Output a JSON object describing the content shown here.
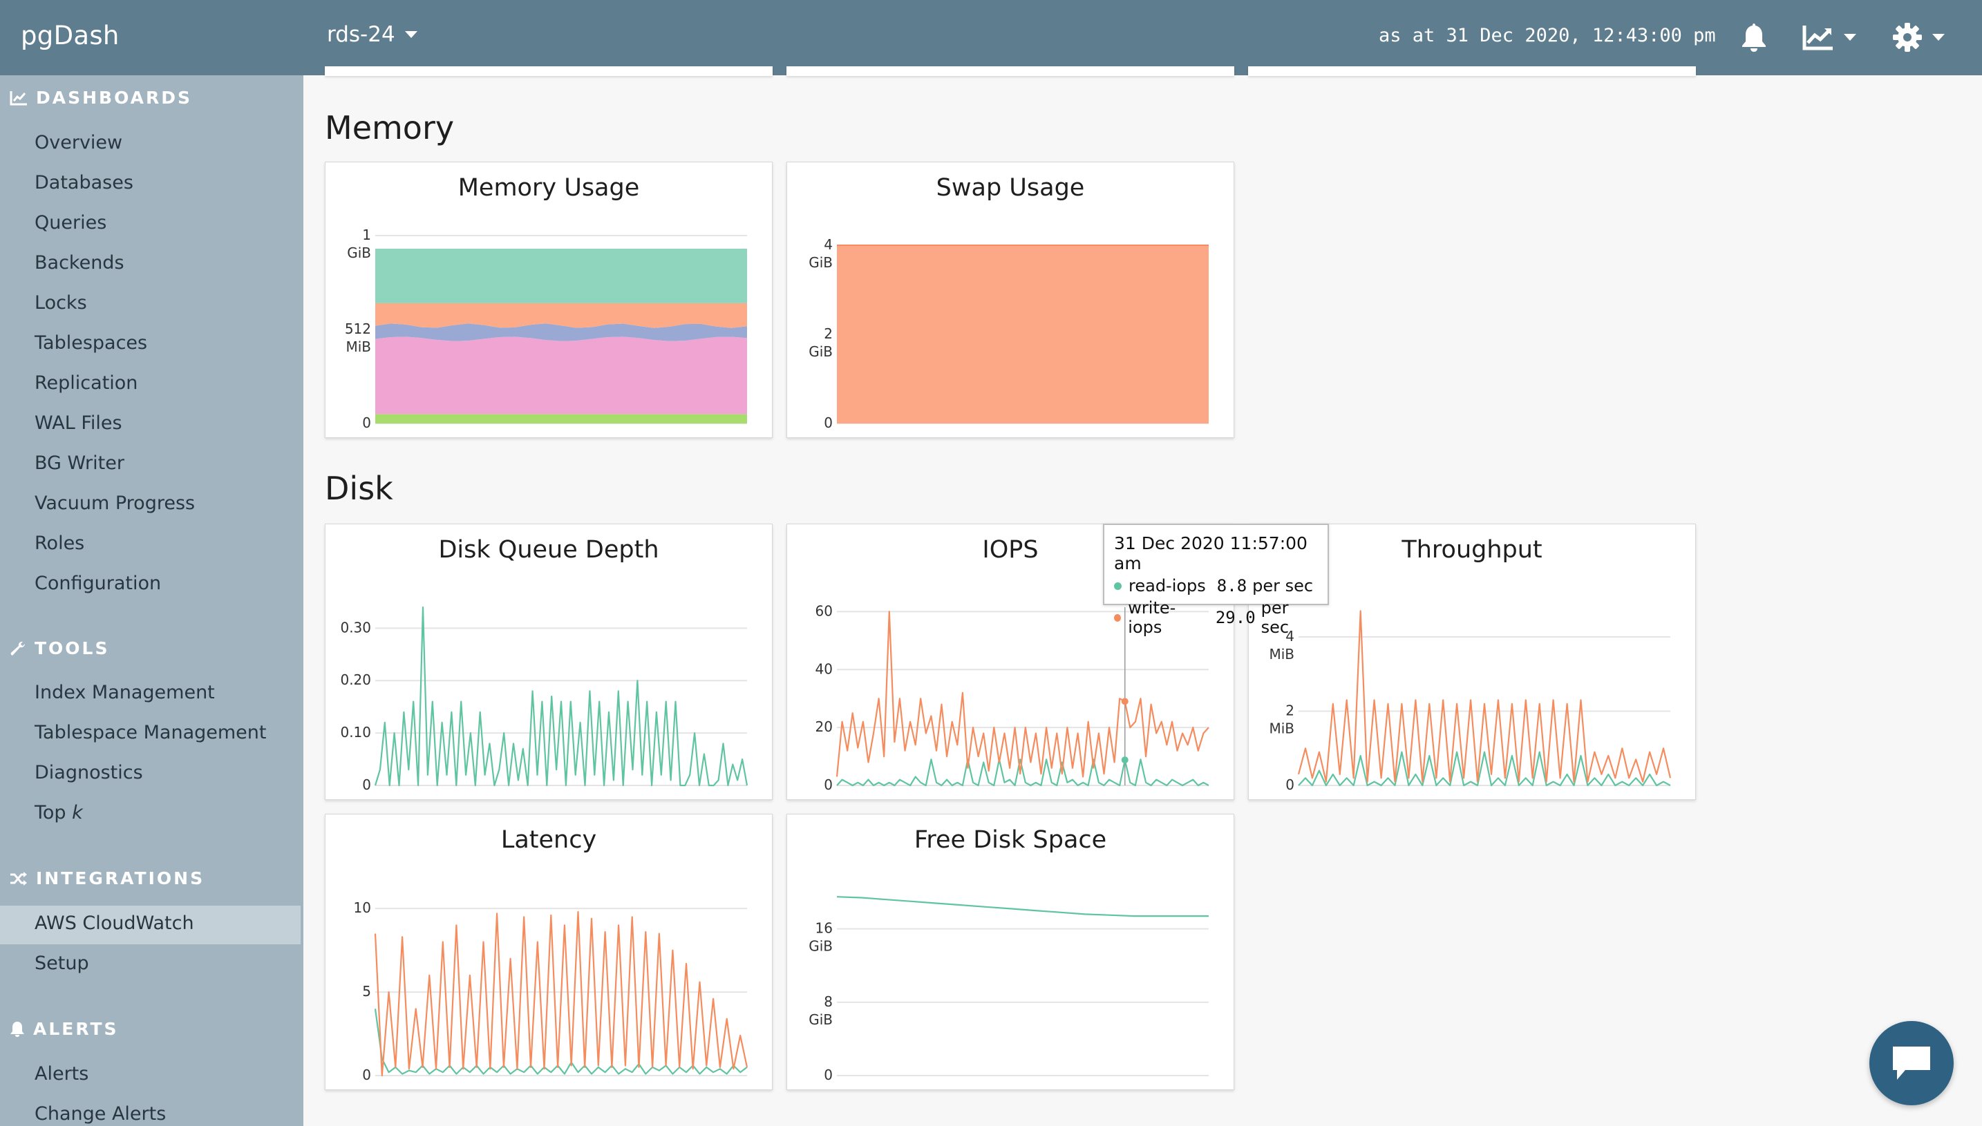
{
  "header": {
    "brand": "pgDash",
    "server": "rds-24",
    "as_at": "as at 31 Dec 2020, 12:43:00 pm",
    "icons": [
      "bell-icon",
      "chart-icon",
      "gear-icon"
    ]
  },
  "sidebar": {
    "dashboards": {
      "heading": "DASHBOARDS",
      "items": [
        "Overview",
        "Databases",
        "Queries",
        "Backends",
        "Locks",
        "Tablespaces",
        "Replication",
        "WAL Files",
        "BG Writer",
        "Vacuum Progress",
        "Roles",
        "Configuration"
      ]
    },
    "tools": {
      "heading": "TOOLS",
      "items": [
        "Index Management",
        "Tablespace Management",
        "Diagnostics"
      ],
      "topk_prefix": "Top ",
      "topk_var": "k"
    },
    "integrations": {
      "heading": "INTEGRATIONS",
      "items": [
        "AWS CloudWatch",
        "Setup"
      ],
      "active": "AWS CloudWatch"
    },
    "alerts": {
      "heading": "ALERTS",
      "items": [
        "Alerts",
        "Change Alerts"
      ]
    }
  },
  "sections": {
    "memory": "Memory",
    "disk": "Disk"
  },
  "colors": {
    "topbar": "#5e7d8f",
    "sidebar": "#a2b4c0",
    "green_series": "#5fc4a0",
    "orange_series": "#f58c5e",
    "swap_fill": "#fca886",
    "mem_teal": "#8fd4bd",
    "mem_orange": "#fcaa88",
    "mem_blue": "#9aa8d4",
    "mem_pink": "#efa4d2",
    "mem_lime": "#a8dc6c"
  },
  "tooltip": {
    "timestamp": "31 Dec 2020 11:57:00 am",
    "rows": [
      {
        "label": "read-iops",
        "value": "8.8",
        "unit": "per sec"
      },
      {
        "label": "write-iops",
        "value": "29.0",
        "unit": "per sec"
      }
    ]
  },
  "chart_data": [
    {
      "id": "memory-usage",
      "type": "area",
      "title": "Memory Usage",
      "y_ticks": [
        [
          "1",
          "GiB"
        ],
        [
          "512",
          "MiB"
        ],
        [
          "0",
          ""
        ]
      ],
      "ylim_gib": [
        0,
        1
      ],
      "stack_bounds_gib": {
        "lime_top": 0.05,
        "pink_top": 0.45,
        "blue_top": 0.52,
        "orange_top": 0.64,
        "teal_top": 0.93
      }
    },
    {
      "id": "swap-usage",
      "type": "area",
      "title": "Swap Usage",
      "y_ticks": [
        [
          "4",
          "GiB"
        ],
        [
          "2",
          "GiB"
        ],
        [
          "0",
          ""
        ]
      ],
      "ylim_gib": [
        0,
        4
      ],
      "value_gib": 4
    },
    {
      "id": "disk-queue-depth",
      "type": "line",
      "title": "Disk Queue Depth",
      "y_ticks": [
        [
          "0.30",
          ""
        ],
        [
          "0.20",
          ""
        ],
        [
          "0.10",
          ""
        ],
        [
          "0",
          ""
        ]
      ],
      "ylim": [
        0,
        0.33
      ],
      "series": [
        {
          "values": [
            0,
            0.03,
            0.12,
            0,
            0.1,
            0,
            0.14,
            0.03,
            0.16,
            0,
            0.34,
            0.02,
            0.16,
            0,
            0.12,
            0.02,
            0.14,
            0,
            0.16,
            0.02,
            0.1,
            0,
            0.14,
            0.02,
            0.08,
            0,
            0.03,
            0.1,
            0,
            0.08,
            0.01,
            0.07,
            0,
            0.18,
            0.02,
            0.16,
            0,
            0.17,
            0.03,
            0.16,
            0,
            0.16,
            0.02,
            0.12,
            0,
            0.18,
            0.02,
            0.16,
            0,
            0.14,
            0.01,
            0.18,
            0,
            0.16,
            0.03,
            0.2,
            0.02,
            0.16,
            0,
            0.14,
            0.02,
            0.16,
            0.01,
            0.16,
            0,
            0,
            0.02,
            0.1,
            0,
            0.06,
            0,
            0,
            0.01,
            0.08,
            0,
            0.04,
            0.01,
            0.05,
            0
          ]
        }
      ]
    },
    {
      "id": "iops",
      "type": "line",
      "title": "IOPS",
      "y_ticks": [
        [
          "60",
          ""
        ],
        [
          "40",
          ""
        ],
        [
          "20",
          ""
        ],
        [
          "0",
          ""
        ]
      ],
      "ylim": [
        0,
        62
      ],
      "series": [
        {
          "name": "read-iops",
          "values": [
            0,
            2,
            1,
            0,
            1,
            0,
            2,
            0,
            1,
            0,
            1,
            0,
            2,
            1,
            0,
            3,
            1,
            0,
            9,
            1,
            0,
            2,
            0,
            1,
            0,
            9,
            1,
            0,
            8,
            1,
            0,
            9,
            1,
            2,
            0,
            9,
            1,
            0,
            1,
            0,
            9,
            1,
            0,
            8,
            1,
            2,
            0,
            1,
            0,
            9,
            1,
            0,
            2,
            1,
            0,
            8.8,
            1,
            0,
            9,
            1,
            0,
            2,
            1,
            0,
            2,
            1,
            0,
            1,
            2,
            0,
            1,
            0
          ]
        },
        {
          "name": "write-iops",
          "values": [
            3,
            22,
            12,
            25,
            13,
            22,
            8,
            18,
            30,
            10,
            60,
            15,
            30,
            12,
            22,
            14,
            30,
            18,
            24,
            12,
            28,
            10,
            22,
            14,
            32,
            6,
            20,
            10,
            18,
            5,
            20,
            8,
            18,
            6,
            20,
            4,
            20,
            8,
            18,
            4,
            20,
            6,
            18,
            4,
            20,
            6,
            18,
            3,
            22,
            6,
            18,
            4,
            20,
            8,
            30,
            29,
            20,
            22,
            30,
            10,
            28,
            18,
            22,
            14,
            22,
            12,
            18,
            14,
            20,
            12,
            18,
            20
          ]
        }
      ]
    },
    {
      "id": "throughput",
      "type": "line",
      "title": "Throughput",
      "y_ticks": [
        [
          "4",
          "MiB"
        ],
        [
          "2",
          "MiB"
        ],
        [
          "0",
          ""
        ]
      ],
      "ylim_mib": [
        0,
        4.6
      ],
      "series": [
        {
          "name": "read",
          "values": [
            0,
            0.2,
            0,
            0.4,
            0,
            0.3,
            0,
            0.2,
            0,
            0.8,
            0,
            0.1,
            0,
            0.2,
            0,
            0.9,
            0,
            0.3,
            0,
            0.8,
            0,
            0.2,
            0,
            0.9,
            0,
            0.1,
            0,
            0.9,
            0,
            0.2,
            0,
            0.8,
            0,
            0.2,
            0,
            0.9,
            0,
            0.1,
            0,
            0.3,
            0,
            0.8,
            0,
            0.2,
            0,
            0.3,
            0,
            0.1,
            0,
            0.2,
            0,
            0.3,
            0,
            0.1,
            0
          ]
        },
        {
          "name": "write",
          "values": [
            0.3,
            1.0,
            0.2,
            0.9,
            0.1,
            2.2,
            0.3,
            2.3,
            0.2,
            4.7,
            0.1,
            2.3,
            0.2,
            2.2,
            0.1,
            2.2,
            0.2,
            2.3,
            0.1,
            2.2,
            0.2,
            2.3,
            0.1,
            2.2,
            0.2,
            2.3,
            0.1,
            2.2,
            0.3,
            2.3,
            0.2,
            2.2,
            0.1,
            2.3,
            0.2,
            2.2,
            0.1,
            2.3,
            0.2,
            2.2,
            0.1,
            2.3,
            0.1,
            0.9,
            0.3,
            0.8,
            0.2,
            1.0,
            0.2,
            0.7,
            0.1,
            0.9,
            0.3,
            1.0,
            0.2
          ]
        }
      ]
    },
    {
      "id": "latency",
      "type": "line",
      "title": "Latency",
      "y_ticks": [
        [
          "10",
          ""
        ],
        [
          "5",
          ""
        ],
        [
          "0",
          ""
        ]
      ],
      "ylim": [
        0,
        11
      ],
      "series": [
        {
          "name": "read",
          "values": [
            4,
            1,
            0.2,
            0.5,
            0.1,
            0.3,
            0.2,
            0.6,
            0.1,
            0.4,
            0.2,
            0.6,
            0.1,
            0.5,
            0.2,
            0.6,
            0.1,
            0.5,
            0.2,
            0.6,
            0.1,
            0.4,
            0.2,
            0.6,
            0.1,
            0.5,
            0.2,
            0.6,
            0.1,
            0.8,
            0.2,
            0.6,
            0.1,
            0.5,
            0.2,
            0.6,
            0.1,
            0.4,
            0.2,
            0.7,
            0.1,
            0.5,
            0.3,
            0.6,
            0.1,
            0.5,
            0.2,
            0.6,
            0.1,
            0.5,
            0.2,
            0.4,
            0.1,
            0.6,
            0.2,
            0.5
          ]
        },
        {
          "name": "write",
          "values": [
            8.5,
            0,
            5,
            0.5,
            8.3,
            0.4,
            4,
            0.5,
            6,
            0.4,
            8,
            0.5,
            9,
            0.4,
            6,
            0.5,
            8,
            0.4,
            9.7,
            0.5,
            7,
            0.4,
            9.5,
            0.5,
            8,
            0.4,
            9.6,
            0.5,
            9,
            0.6,
            9.8,
            0.5,
            9.4,
            0.6,
            8.6,
            0.5,
            9,
            0.6,
            9.5,
            0.5,
            8.6,
            0.5,
            8.5,
            0.6,
            7.5,
            0.5,
            6.7,
            0.4,
            5.6,
            0.6,
            4.6,
            0.5,
            3.4,
            0.4,
            2.4,
            0.5
          ]
        }
      ]
    },
    {
      "id": "free-disk-space",
      "type": "line",
      "title": "Free Disk Space",
      "y_ticks": [
        [
          "16",
          "GiB"
        ],
        [
          "8",
          "GiB"
        ],
        [
          "0",
          ""
        ]
      ],
      "ylim_gib": [
        0,
        22
      ],
      "series": [
        {
          "values": [
            19.5,
            19.4,
            19.2,
            19.0,
            18.8,
            18.6,
            18.4,
            18.2,
            18.0,
            17.8,
            17.6,
            17.5,
            17.4,
            17.4,
            17.4,
            17.4
          ]
        }
      ]
    }
  ]
}
